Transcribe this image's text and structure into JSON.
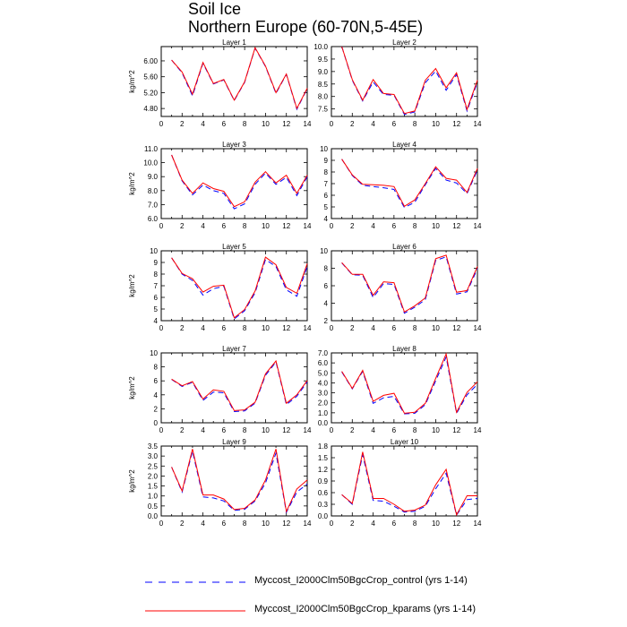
{
  "title": "Soil Ice",
  "subtitle": "Northern Europe (60-70N,5-45E)",
  "legend": [
    {
      "label": "Myccost_I2000Clm50BgcCrop_control (yrs 1-14)",
      "color": "#0000ff",
      "dash": "dashed"
    },
    {
      "label": "Myccost_I2000Clm50BgcCrop_kparams (yrs 1-14)",
      "color": "#ff0000",
      "dash": "solid"
    }
  ],
  "chart_data": [
    {
      "type": "line",
      "title": "Layer 1",
      "ylabel": "kg/m^2",
      "xlim": [
        0,
        14
      ],
      "ylim": [
        4.6,
        6.36
      ],
      "xticks": [
        0,
        2,
        4,
        6,
        8,
        10,
        12,
        14
      ],
      "yticks": [
        "4.80",
        "5.20",
        "5.60",
        "6.00"
      ],
      "ytick_values": [
        4.8,
        5.2,
        5.6,
        6.0
      ],
      "x": [
        1,
        2,
        3,
        4,
        5,
        6,
        7,
        8,
        9,
        10,
        11,
        12,
        13,
        14
      ],
      "series": [
        {
          "name": "Myccost_I2000Clm50BgcCrop_control (yrs 1-14)",
          "values": [
            6.02,
            5.7,
            5.12,
            5.94,
            5.42,
            5.52,
            5.0,
            5.46,
            6.32,
            5.86,
            5.18,
            5.66,
            4.78,
            5.3
          ]
        },
        {
          "name": "Myccost_I2000Clm50BgcCrop_kparams (yrs 1-14)",
          "values": [
            6.02,
            5.72,
            5.16,
            5.96,
            5.43,
            5.53,
            5.01,
            5.47,
            6.33,
            5.87,
            5.2,
            5.67,
            4.8,
            5.31
          ]
        }
      ]
    },
    {
      "type": "line",
      "title": "Layer 2",
      "ylabel": "",
      "xlim": [
        0,
        14
      ],
      "ylim": [
        7.2,
        10.0
      ],
      "xticks": [
        0,
        2,
        4,
        6,
        8,
        10,
        12,
        14
      ],
      "yticks": [
        "7.5",
        "8.0",
        "8.5",
        "9.0",
        "9.5",
        "10.0"
      ],
      "ytick_values": [
        7.5,
        8.0,
        8.5,
        9.0,
        9.5,
        10.0
      ],
      "x": [
        1,
        2,
        3,
        4,
        5,
        6,
        7,
        8,
        9,
        10,
        11,
        12,
        13,
        14
      ],
      "series": [
        {
          "name": "Myccost_I2000Clm50BgcCrop_control (yrs 1-14)",
          "values": [
            10.0,
            8.65,
            7.82,
            8.58,
            8.08,
            8.05,
            7.28,
            7.38,
            8.55,
            9.02,
            8.25,
            8.88,
            7.42,
            8.58
          ]
        },
        {
          "name": "Myccost_I2000Clm50BgcCrop_kparams (yrs 1-14)",
          "values": [
            10.0,
            8.68,
            7.85,
            8.68,
            8.12,
            8.08,
            7.32,
            7.42,
            8.65,
            9.12,
            8.35,
            8.95,
            7.48,
            8.65
          ]
        }
      ]
    },
    {
      "type": "line",
      "title": "Layer 3",
      "ylabel": "kg/m^2",
      "xlim": [
        0,
        14
      ],
      "ylim": [
        6.0,
        11.0
      ],
      "xticks": [
        0,
        2,
        4,
        6,
        8,
        10,
        12,
        14
      ],
      "yticks": [
        "6.0",
        "7.0",
        "8.0",
        "9.0",
        "10.0",
        "11.0"
      ],
      "ytick_values": [
        6,
        7,
        8,
        9,
        10,
        11
      ],
      "x": [
        1,
        2,
        3,
        4,
        5,
        6,
        7,
        8,
        9,
        10,
        11,
        12,
        13,
        14
      ],
      "series": [
        {
          "name": "Myccost_I2000Clm50BgcCrop_control (yrs 1-14)",
          "values": [
            10.55,
            8.7,
            7.7,
            8.4,
            8.0,
            7.8,
            6.7,
            7.05,
            8.45,
            9.25,
            8.45,
            8.95,
            7.65,
            9.0
          ]
        },
        {
          "name": "Myccost_I2000Clm50BgcCrop_kparams (yrs 1-14)",
          "values": [
            10.55,
            8.75,
            7.8,
            8.55,
            8.15,
            7.95,
            6.85,
            7.2,
            8.6,
            9.35,
            8.55,
            9.1,
            7.8,
            9.1
          ]
        }
      ]
    },
    {
      "type": "line",
      "title": "Layer 4",
      "ylabel": "",
      "xlim": [
        0,
        14
      ],
      "ylim": [
        4,
        10
      ],
      "xticks": [
        0,
        2,
        4,
        6,
        8,
        10,
        12,
        14
      ],
      "yticks": [
        "4",
        "5",
        "6",
        "7",
        "8",
        "9",
        "10"
      ],
      "ytick_values": [
        4,
        5,
        6,
        7,
        8,
        9,
        10
      ],
      "x": [
        1,
        2,
        3,
        4,
        5,
        6,
        7,
        8,
        9,
        10,
        11,
        12,
        13,
        14
      ],
      "series": [
        {
          "name": "Myccost_I2000Clm50BgcCrop_control (yrs 1-14)",
          "values": [
            9.1,
            7.7,
            6.85,
            6.75,
            6.65,
            6.5,
            4.95,
            5.4,
            6.9,
            8.3,
            7.3,
            7.05,
            6.15,
            8.15
          ]
        },
        {
          "name": "Myccost_I2000Clm50BgcCrop_kparams (yrs 1-14)",
          "values": [
            9.1,
            7.75,
            6.95,
            6.9,
            6.85,
            6.75,
            5.05,
            5.6,
            7.0,
            8.45,
            7.45,
            7.3,
            6.25,
            8.3
          ]
        }
      ]
    },
    {
      "type": "line",
      "title": "Layer 5",
      "ylabel": "kg/m^2",
      "xlim": [
        0,
        14
      ],
      "ylim": [
        4,
        10
      ],
      "xticks": [
        0,
        2,
        4,
        6,
        8,
        10,
        12,
        14
      ],
      "yticks": [
        "4",
        "5",
        "6",
        "7",
        "8",
        "9",
        "10"
      ],
      "ytick_values": [
        4,
        5,
        6,
        7,
        8,
        9,
        10
      ],
      "x": [
        1,
        2,
        3,
        4,
        5,
        6,
        7,
        8,
        9,
        10,
        11,
        12,
        13,
        14
      ],
      "series": [
        {
          "name": "Myccost_I2000Clm50BgcCrop_control (yrs 1-14)",
          "values": [
            9.4,
            8.0,
            7.45,
            6.2,
            6.75,
            6.95,
            4.15,
            4.85,
            6.4,
            9.25,
            8.65,
            6.65,
            6.1,
            8.65
          ]
        },
        {
          "name": "Myccost_I2000Clm50BgcCrop_kparams (yrs 1-14)",
          "values": [
            9.4,
            8.05,
            7.6,
            6.45,
            6.95,
            7.05,
            4.25,
            4.95,
            6.55,
            9.45,
            8.8,
            6.85,
            6.35,
            8.9
          ]
        }
      ]
    },
    {
      "type": "line",
      "title": "Layer 6",
      "ylabel": "",
      "xlim": [
        0,
        14
      ],
      "ylim": [
        2,
        10
      ],
      "xticks": [
        0,
        2,
        4,
        6,
        8,
        10,
        12,
        14
      ],
      "yticks": [
        "2",
        "4",
        "6",
        "8",
        "10"
      ],
      "ytick_values": [
        2,
        4,
        6,
        8,
        10
      ],
      "x": [
        1,
        2,
        3,
        4,
        5,
        6,
        7,
        8,
        9,
        10,
        11,
        12,
        13,
        14
      ],
      "series": [
        {
          "name": "Myccost_I2000Clm50BgcCrop_control (yrs 1-14)",
          "values": [
            8.6,
            7.25,
            7.2,
            4.65,
            6.25,
            6.15,
            2.85,
            3.55,
            4.4,
            8.9,
            9.3,
            5.05,
            5.3,
            7.95
          ]
        },
        {
          "name": "Myccost_I2000Clm50BgcCrop_kparams (yrs 1-14)",
          "values": [
            8.65,
            7.3,
            7.3,
            4.9,
            6.45,
            6.35,
            3.0,
            3.7,
            4.6,
            9.1,
            9.5,
            5.25,
            5.45,
            8.2
          ]
        }
      ]
    },
    {
      "type": "line",
      "title": "Layer 7",
      "ylabel": "kg/m^2",
      "xlim": [
        0,
        14
      ],
      "ylim": [
        0,
        10
      ],
      "xticks": [
        0,
        2,
        4,
        6,
        8,
        10,
        12,
        14
      ],
      "yticks": [
        "0",
        "2",
        "4",
        "6",
        "8",
        "10"
      ],
      "ytick_values": [
        0,
        2,
        4,
        6,
        8,
        10
      ],
      "x": [
        1,
        2,
        3,
        4,
        5,
        6,
        7,
        8,
        9,
        10,
        11,
        12,
        13,
        14
      ],
      "series": [
        {
          "name": "Myccost_I2000Clm50BgcCrop_control (yrs 1-14)",
          "values": [
            6.2,
            5.2,
            5.8,
            3.2,
            4.4,
            4.3,
            1.6,
            1.7,
            2.8,
            6.8,
            8.7,
            2.6,
            3.8,
            5.85
          ]
        },
        {
          "name": "Myccost_I2000Clm50BgcCrop_kparams (yrs 1-14)",
          "values": [
            6.25,
            5.3,
            5.9,
            3.4,
            4.7,
            4.5,
            1.75,
            1.85,
            2.95,
            7.0,
            8.85,
            2.8,
            4.0,
            6.05
          ]
        }
      ]
    },
    {
      "type": "line",
      "title": "Layer 8",
      "ylabel": "",
      "xlim": [
        0,
        14
      ],
      "ylim": [
        0,
        7.0
      ],
      "xticks": [
        0,
        2,
        4,
        6,
        8,
        10,
        12,
        14
      ],
      "yticks": [
        "0.0",
        "1.0",
        "2.0",
        "3.0",
        "4.0",
        "5.0",
        "6.0",
        "7.0"
      ],
      "ytick_values": [
        0,
        1,
        2,
        3,
        4,
        5,
        6,
        7
      ],
      "x": [
        1,
        2,
        3,
        4,
        5,
        6,
        7,
        8,
        9,
        10,
        11,
        12,
        13,
        14
      ],
      "series": [
        {
          "name": "Myccost_I2000Clm50BgcCrop_control (yrs 1-14)",
          "values": [
            5.1,
            3.4,
            5.15,
            1.95,
            2.5,
            2.65,
            0.9,
            0.95,
            1.8,
            4.2,
            6.6,
            0.95,
            2.8,
            3.85
          ]
        },
        {
          "name": "Myccost_I2000Clm50BgcCrop_kparams (yrs 1-14)",
          "values": [
            5.15,
            3.45,
            5.25,
            2.15,
            2.75,
            2.95,
            0.95,
            1.05,
            1.95,
            4.45,
            6.9,
            1.05,
            3.05,
            4.1
          ]
        }
      ]
    },
    {
      "type": "line",
      "title": "Layer 9",
      "ylabel": "kg/m^2",
      "xlim": [
        0,
        14
      ],
      "ylim": [
        0,
        3.5
      ],
      "xticks": [
        0,
        2,
        4,
        6,
        8,
        10,
        12,
        14
      ],
      "yticks": [
        "0.0",
        "0.5",
        "1.0",
        "1.5",
        "2.0",
        "2.5",
        "3.0",
        "3.5"
      ],
      "ytick_values": [
        0,
        0.5,
        1,
        1.5,
        2,
        2.5,
        3,
        3.5
      ],
      "x": [
        1,
        2,
        3,
        4,
        5,
        6,
        7,
        8,
        9,
        10,
        11,
        12,
        13,
        14
      ],
      "series": [
        {
          "name": "Myccost_I2000Clm50BgcCrop_control (yrs 1-14)",
          "values": [
            2.45,
            1.2,
            3.25,
            0.95,
            0.9,
            0.75,
            0.28,
            0.33,
            0.75,
            1.65,
            3.15,
            0.18,
            1.2,
            1.6
          ]
        },
        {
          "name": "Myccost_I2000Clm50BgcCrop_kparams (yrs 1-14)",
          "values": [
            2.45,
            1.25,
            3.35,
            1.05,
            1.05,
            0.85,
            0.32,
            0.38,
            0.8,
            1.8,
            3.35,
            0.22,
            1.35,
            1.8
          ]
        }
      ]
    },
    {
      "type": "line",
      "title": "Layer 10",
      "ylabel": "",
      "xlim": [
        0,
        14
      ],
      "ylim": [
        0,
        1.8
      ],
      "xticks": [
        0,
        2,
        4,
        6,
        8,
        10,
        12,
        14
      ],
      "yticks": [
        "0.0",
        "0.3",
        "0.6",
        "0.9",
        "1.2",
        "1.5",
        "1.8"
      ],
      "ytick_values": [
        0,
        0.3,
        0.6,
        0.9,
        1.2,
        1.5,
        1.8
      ],
      "x": [
        1,
        2,
        3,
        4,
        5,
        6,
        7,
        8,
        9,
        10,
        11,
        12,
        13,
        14
      ],
      "series": [
        {
          "name": "Myccost_I2000Clm50BgcCrop_control (yrs 1-14)",
          "values": [
            0.55,
            0.3,
            1.58,
            0.4,
            0.38,
            0.25,
            0.1,
            0.12,
            0.25,
            0.7,
            1.1,
            0.02,
            0.42,
            0.45
          ]
        },
        {
          "name": "Myccost_I2000Clm50BgcCrop_kparams (yrs 1-14)",
          "values": [
            0.55,
            0.32,
            1.65,
            0.45,
            0.45,
            0.3,
            0.12,
            0.15,
            0.28,
            0.8,
            1.2,
            0.03,
            0.52,
            0.52
          ]
        }
      ]
    }
  ]
}
